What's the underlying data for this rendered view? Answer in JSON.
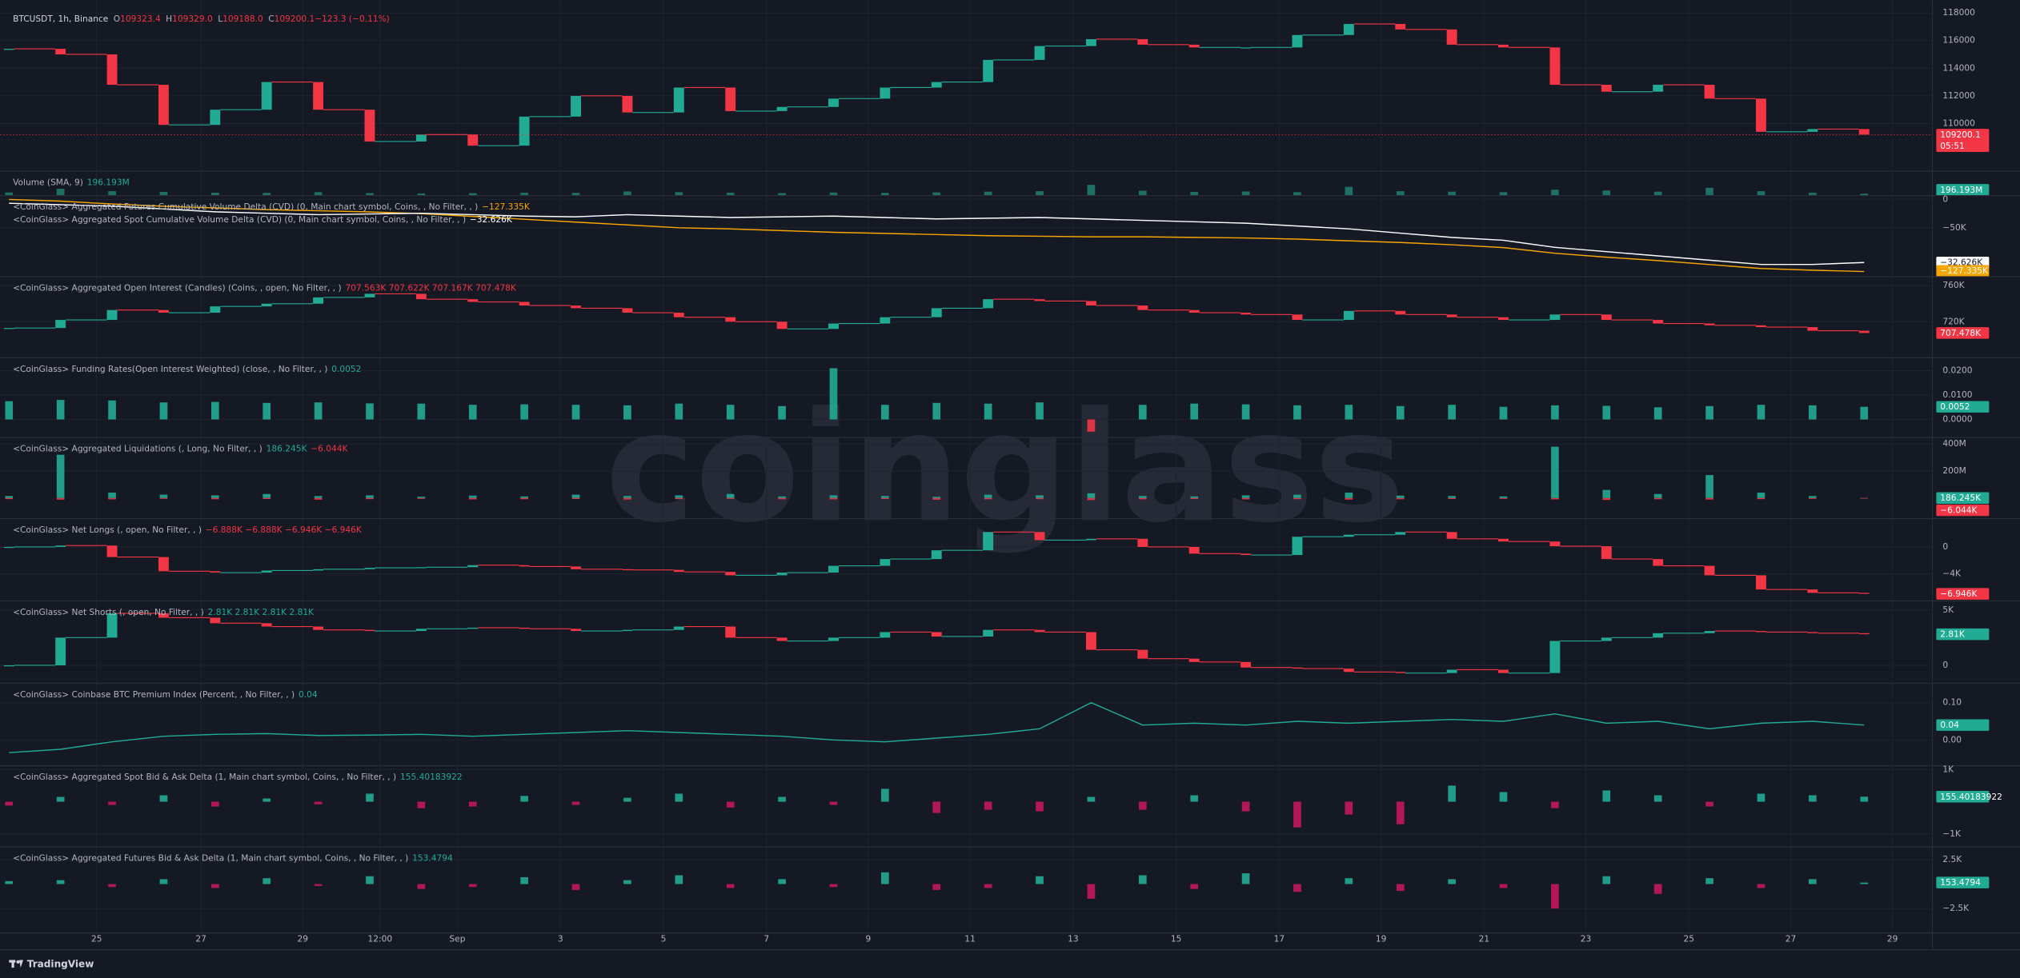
{
  "header": {
    "symbol": "BTCUSDT, 1h, Binance",
    "ohlc": [
      {
        "key": "O",
        "value": "109323.4"
      },
      {
        "key": "H",
        "value": "109329.0"
      },
      {
        "key": "L",
        "value": "109188.0"
      },
      {
        "key": "C",
        "value": "109200.1"
      },
      {
        "key": "",
        "value": "−123.3 (−0.11%)"
      }
    ]
  },
  "watermark": "coinglass",
  "brand": "TradingView",
  "time_axis": [
    "25",
    "27",
    "29",
    "12:00",
    "Sep",
    "3",
    "5",
    "7",
    "9",
    "11",
    "13",
    "15",
    "17",
    "19",
    "21",
    "23",
    "25",
    "27",
    "29"
  ],
  "chart_data": [
    {
      "type": "candlestick",
      "ylim": [
        106650,
        118930
      ],
      "yticks": [
        118000,
        116000,
        114000,
        112000,
        110000
      ],
      "current_line": true,
      "series": [
        {
          "color": "#22ab94",
          "negative_color": "#f23645",
          "values": [
            115400,
            115000,
            112800,
            109900,
            111000,
            113000,
            111000,
            108700,
            109200,
            108400,
            110500,
            112000,
            110800,
            112600,
            110900,
            111200,
            111800,
            112600,
            113000,
            114600,
            115600,
            116100,
            115700,
            115500,
            115500,
            116400,
            117200,
            116800,
            115700,
            115500,
            112800,
            112300,
            112800,
            111800,
            109400,
            109600,
            109200.1
          ]
        }
      ],
      "badges": [
        {
          "value": 109200.1,
          "color": "#f23645",
          "countdown": "05:51"
        }
      ]
    },
    {
      "type": "bar",
      "ylim": [
        0,
        2500000000
      ],
      "yticks": [],
      "legends": [
        {
          "title": "Volume (SMA, 9)",
          "values": [
            {
              "text": "196.193M",
              "color": "#22ab94"
            }
          ]
        }
      ],
      "series": [
        {
          "color": "#1f7a6c",
          "negative_color": "#1f7a6c",
          "values": [
            320000000,
            700000000,
            450000000,
            380000000,
            300000000,
            280000000,
            350000000,
            260000000,
            220000000,
            250000000,
            300000000,
            280000000,
            420000000,
            350000000,
            300000000,
            260000000,
            310000000,
            280000000,
            330000000,
            400000000,
            450000000,
            1100000000,
            500000000,
            380000000,
            420000000,
            350000000,
            900000000,
            450000000,
            400000000,
            350000000,
            600000000,
            520000000,
            400000000,
            800000000,
            450000000,
            300000000,
            196193000
          ]
        }
      ],
      "badges": [
        {
          "value": 196193000,
          "label": "196.193M",
          "color": "#22ab94"
        }
      ]
    },
    {
      "type": "line",
      "ylim": [
        -136400,
        6800
      ],
      "y2lim": [
        -42600,
        14400
      ],
      "yticks": [
        0,
        {
          "value": -50000,
          "label": "−50K"
        }
      ],
      "legends": [
        {
          "title": "<CoinGlass> Aggregated Futures Cumulative Volume Delta (CVD) (0, Main chart symbol, Coins, , No Filter, , )",
          "values": [
            {
              "text": "−127.335K",
              "color": "#f7a600"
            }
          ]
        },
        {
          "title": "<CoinGlass> Aggregated Spot Cumulative Volume Delta (CVD) (0, Main chart symbol, Coins, , No Filter, , )",
          "values": [
            {
              "text": "−32.626K",
              "color": "#ffffff"
            }
          ]
        }
      ],
      "series": [
        {
          "color": "#f7a600",
          "values": [
            0,
            -3000,
            -8000,
            -12000,
            -15000,
            -18000,
            -20000,
            -22000,
            -25000,
            -30000,
            -35000,
            -40000,
            -45000,
            -50000,
            -52000,
            -55000,
            -58000,
            -60000,
            -62000,
            -64000,
            -65000,
            -66000,
            -66000,
            -67000,
            -68000,
            -70000,
            -73000,
            -76000,
            -80000,
            -85000,
            -95000,
            -102000,
            -108000,
            -115000,
            -122000,
            -125000,
            -127335
          ]
        },
        {
          "color": "#ffffff",
          "axis": "y2",
          "values": [
            9000,
            8000,
            7000,
            5000,
            3000,
            2000,
            1000,
            1500,
            2000,
            1000,
            0,
            -500,
            1000,
            0,
            -1000,
            -500,
            0,
            -1000,
            -2000,
            -1500,
            -1000,
            -2000,
            -3000,
            -4000,
            -5000,
            -7000,
            -9000,
            -12000,
            -15000,
            -17000,
            -22000,
            -25000,
            -28000,
            -31000,
            -34000,
            -34000,
            -32626
          ]
        }
      ],
      "badges": [
        {
          "value": -32626,
          "label": "−32.626K",
          "color": "#ffffff",
          "axis": "y2"
        },
        {
          "value": -127335,
          "label": "−127.335K",
          "color": "#f7a600"
        }
      ]
    },
    {
      "type": "candlestick",
      "ylim": [
        680000,
        770000
      ],
      "yticks": [
        {
          "value": 760000,
          "label": "760K"
        },
        {
          "value": 720000,
          "label": "720K"
        }
      ],
      "legends": [
        {
          "title": "<CoinGlass> Aggregated Open Interest (Candles) (Coins, , open, No Filter, , )",
          "values": [
            {
              "text": "707.563K 707.622K 707.167K 707.478K",
              "color": "#f23645"
            }
          ]
        }
      ],
      "series": [
        {
          "color": "#22ab94",
          "negative_color": "#f23645",
          "values": [
            713000,
            722000,
            733000,
            730000,
            737000,
            740000,
            747000,
            751000,
            745000,
            742000,
            738000,
            735000,
            730000,
            725000,
            720000,
            712000,
            718000,
            725000,
            735000,
            745000,
            743000,
            738000,
            733000,
            730000,
            728000,
            722000,
            732000,
            728000,
            725000,
            722000,
            728000,
            722000,
            718000,
            716000,
            714000,
            710000,
            707478
          ]
        }
      ],
      "badges": [
        {
          "value": 707478,
          "label": "707.478K",
          "color": "#f23645"
        }
      ]
    },
    {
      "type": "bar",
      "ylim": [
        -0.0074,
        0.0253
      ],
      "yticks": [
        {
          "value": 0.02,
          "label": "0.0200"
        },
        {
          "value": 0.01,
          "label": "0.0100"
        },
        {
          "value": 0,
          "label": "0.0000"
        }
      ],
      "legends": [
        {
          "title": "<CoinGlass> Funding Rates(Open Interest Weighted) (close, , No Filter, , )",
          "values": [
            {
              "text": "0.0052",
              "color": "#22ab94"
            }
          ]
        }
      ],
      "series": [
        {
          "color": "#22ab94",
          "negative_color": "#f23645",
          "values": [
            0.0075,
            0.008,
            0.0078,
            0.007,
            0.0072,
            0.0068,
            0.007,
            0.0066,
            0.0065,
            0.006,
            0.0062,
            0.006,
            0.0058,
            0.0065,
            0.006,
            0.0055,
            0.021,
            0.006,
            0.0068,
            0.0065,
            0.007,
            -0.005,
            0.006,
            0.0065,
            0.0062,
            0.0058,
            0.006,
            0.0055,
            0.006,
            0.0052,
            0.0058,
            0.0056,
            0.005,
            0.0055,
            0.006,
            0.0058,
            0.0052
          ]
        }
      ],
      "badges": [
        {
          "value": 0.0052,
          "label": "0.0052",
          "color": "#22ab94"
        }
      ]
    },
    {
      "type": "bar",
      "ylim": [
        -152000000,
        447600000
      ],
      "yticks": [
        {
          "value": 400000000,
          "label": "400M"
        },
        {
          "value": 200000000,
          "label": "200M"
        }
      ],
      "legends": [
        {
          "title": "<CoinGlass> Aggregated Liquidations  (, Long, No Filter, , )",
          "values": [
            {
              "text": "186.245K",
              "color": "#22ab94"
            },
            {
              "text": "−6.044K",
              "color": "#f23645"
            }
          ]
        }
      ],
      "series": [
        {
          "color": "#22ab94",
          "negative_color": "#f23645",
          "values": [
            15000000,
            320000000,
            40000000,
            25000000,
            20000000,
            30000000,
            15000000,
            20000000,
            10000000,
            18000000,
            12000000,
            25000000,
            15000000,
            20000000,
            30000000,
            12000000,
            20000000,
            15000000,
            10000000,
            25000000,
            20000000,
            35000000,
            15000000,
            12000000,
            20000000,
            25000000,
            40000000,
            18000000,
            15000000,
            12000000,
            380000000,
            60000000,
            30000000,
            170000000,
            40000000,
            15000000,
            186245
          ]
        },
        {
          "color": "#22ab94",
          "negative_color": "#f23645",
          "values": [
            -8000000,
            -12000000,
            -10000000,
            -6000000,
            -9000000,
            -7000000,
            -12000000,
            -8000000,
            -6000000,
            -10000000,
            -9000000,
            -7000000,
            -11000000,
            -8000000,
            -6000000,
            -9000000,
            -10000000,
            -7000000,
            -12000000,
            -9000000,
            -8000000,
            -15000000,
            -9000000,
            -7000000,
            -10000000,
            -8000000,
            -12000000,
            -9000000,
            -7000000,
            -6000000,
            -10000000,
            -14000000,
            -9000000,
            -11000000,
            -8000000,
            -6000000,
            -6044
          ]
        }
      ],
      "badges": [
        {
          "value": 186245,
          "label": "186.245K",
          "color": "#22ab94"
        },
        {
          "value": -6044,
          "label": "−6.044K",
          "color": "#f23645"
        }
      ]
    },
    {
      "type": "candlestick",
      "ylim": [
        -8000,
        4190
      ],
      "yticks": [
        0,
        {
          "value": -4000,
          "label": "−4K"
        }
      ],
      "legends": [
        {
          "title": "<CoinGlass> Net Longs (, open, No Filter, , )",
          "values": [
            {
              "text": "−6.888K −6.888K −6.946K −6.946K",
              "color": "#f23645"
            }
          ]
        }
      ],
      "series": [
        {
          "color": "#22ab94",
          "negative_color": "#f23645",
          "values": [
            0,
            200,
            -1500,
            -3600,
            -3800,
            -3500,
            -3300,
            -3100,
            -3000,
            -2700,
            -2900,
            -3300,
            -3400,
            -3700,
            -4200,
            -3800,
            -2800,
            -1800,
            -500,
            2200,
            1000,
            1200,
            0,
            -1000,
            -1200,
            1500,
            1800,
            2200,
            1200,
            800,
            100,
            -1800,
            -2800,
            -4200,
            -6300,
            -6800,
            -6946
          ]
        }
      ],
      "badges": [
        {
          "value": -6946,
          "label": "−6.946K",
          "color": "#f23645"
        }
      ]
    },
    {
      "type": "candlestick",
      "ylim": [
        -1628,
        5814
      ],
      "yticks": [
        {
          "value": 5000,
          "label": "5K"
        },
        0
      ],
      "legends": [
        {
          "title": "<CoinGlass> Net Shorts (, open, No Filter, , )",
          "values": [
            {
              "text": "2.81K 2.81K 2.81K 2.81K",
              "color": "#22ab94"
            }
          ]
        }
      ],
      "series": [
        {
          "color": "#22ab94",
          "negative_color": "#f23645",
          "values": [
            0,
            2500,
            4700,
            4300,
            3800,
            3500,
            3200,
            3100,
            3300,
            3400,
            3300,
            3100,
            3200,
            3500,
            2500,
            2200,
            2500,
            3000,
            2600,
            3200,
            3000,
            1400,
            600,
            300,
            -200,
            -300,
            -600,
            -700,
            -400,
            -700,
            2200,
            2500,
            2900,
            3100,
            3000,
            2900,
            2810
          ]
        }
      ],
      "badges": [
        {
          "value": 2810,
          "label": "2.81K",
          "color": "#22ab94"
        }
      ]
    },
    {
      "type": "line",
      "ylim": [
        -0.069,
        0.152
      ],
      "yticks": [
        {
          "value": 0.1,
          "label": "0.10"
        },
        {
          "value": 0,
          "label": "0.00"
        }
      ],
      "line_colors_by_sign": true,
      "legends": [
        {
          "title": "<CoinGlass> Coinbase BTC Premium Index (Percent, , No Filter, , )",
          "values": [
            {
              "text": "0.04",
              "color": "#22ab94"
            }
          ]
        }
      ],
      "series": [
        {
          "color": "#22ab94",
          "negative_color": "#f23645",
          "values": [
            -0.034,
            -0.025,
            -0.005,
            0.01,
            0.015,
            0.017,
            0.012,
            0.013,
            0.015,
            0.01,
            0.015,
            0.02,
            0.025,
            0.02,
            0.015,
            0.01,
            0,
            -0.005,
            0.005,
            0.015,
            0.03,
            0.1,
            0.04,
            0.045,
            0.04,
            0.05,
            0.045,
            0.05,
            0.055,
            0.05,
            0.07,
            0.045,
            0.05,
            0.03,
            0.045,
            0.05,
            0.04
          ]
        }
      ],
      "badges": [
        {
          "value": 0.04,
          "color": "#22ab94"
        }
      ]
    },
    {
      "type": "bar",
      "ylim": [
        -1400,
        1120
      ],
      "yticks": [
        {
          "value": 1000,
          "label": "1K"
        },
        {
          "value": -1000,
          "label": "−1K"
        }
      ],
      "legends": [
        {
          "title": "<CoinGlass> Aggregated Spot Bid & Ask Delta (1, Main chart symbol, Coins, , No Filter, , )",
          "values": [
            {
              "text": "155.40183922",
              "color": "#22ab94"
            }
          ]
        }
      ],
      "series": [
        {
          "color": "#22ab94",
          "negative_color": "#c2185b",
          "values": [
            -120,
            150,
            -100,
            200,
            -150,
            100,
            -80,
            250,
            -200,
            -150,
            180,
            -100,
            120,
            250,
            -180,
            150,
            -100,
            400,
            -350,
            -250,
            -300,
            150,
            -250,
            200,
            -300,
            -800,
            -400,
            -700,
            500,
            300,
            -200,
            350,
            200,
            -150,
            250,
            200,
            155.40183922
          ]
        }
      ],
      "badges": [
        {
          "value": 155.40183922,
          "color": "#22ab94"
        }
      ]
    },
    {
      "type": "bar",
      "ylim": [
        -5000,
        3816
      ],
      "yticks": [
        {
          "value": 2500,
          "label": "2.5K"
        },
        {
          "value": -2500,
          "label": "−2.5K"
        }
      ],
      "legends": [
        {
          "title": "<CoinGlass> Aggregated Futures Bid & Ask Delta (1, Main chart symbol, Coins, , No Filter, , )",
          "values": [
            {
              "text": "153.4794",
              "color": "#22ab94"
            }
          ]
        }
      ],
      "series": [
        {
          "color": "#22ab94",
          "negative_color": "#c2185b",
          "values": [
            300,
            400,
            -300,
            500,
            -400,
            600,
            -200,
            800,
            -500,
            -300,
            700,
            -600,
            400,
            900,
            -400,
            500,
            -300,
            1200,
            -600,
            -400,
            800,
            -1500,
            900,
            -500,
            1100,
            -800,
            600,
            -700,
            500,
            -400,
            -2500,
            800,
            -1000,
            600,
            -400,
            500,
            153.4794
          ]
        }
      ],
      "badges": [
        {
          "value": 153.4794,
          "color": "#22ab94"
        }
      ]
    }
  ]
}
